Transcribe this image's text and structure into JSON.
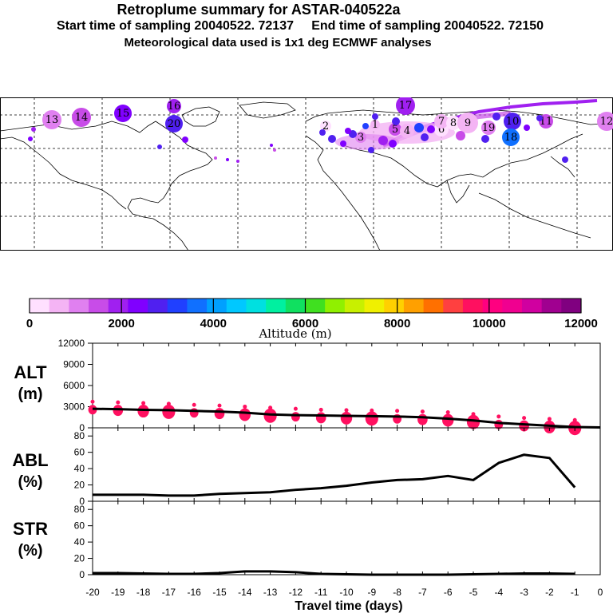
{
  "header": {
    "title": "Retroplume summary for ASTAR-040522a",
    "subtitle": "Start time of sampling 20040522. 72137     End time of sampling 20040522. 72150",
    "met": "Meteorological data used is 1x1 deg ECMWF analyses"
  },
  "map": {
    "cluster_labels": [
      "13",
      "14",
      "15",
      "16",
      "20",
      "2",
      "1",
      "3",
      "5",
      "4",
      "6",
      "7",
      "8",
      "9",
      "10",
      "11",
      "12",
      "17",
      "18",
      "19"
    ]
  },
  "colorbar": {
    "label": "Altitude (m)",
    "ticks": [
      "0",
      "2000",
      "4000",
      "6000",
      "8000",
      "10000",
      "12000"
    ],
    "colors": [
      "#ffe0ff",
      "#f4b4f4",
      "#e080f0",
      "#c84ce8",
      "#a020f0",
      "#8000ff",
      "#5020f0",
      "#2040ff",
      "#1070ff",
      "#00a0ff",
      "#00c8ff",
      "#00e0e0",
      "#00f0a0",
      "#10e060",
      "#40e020",
      "#90f000",
      "#c8f000",
      "#f0f000",
      "#ffd000",
      "#ffa000",
      "#ff7000",
      "#ff4040",
      "#ff1060",
      "#ff0080",
      "#f00090",
      "#d000a0",
      "#a00090",
      "#800080"
    ]
  },
  "chart_data": [
    {
      "type": "line",
      "panel": "ALT",
      "ylabel": "ALT\n(m)",
      "ylabel_line1": "ALT",
      "ylabel_line2": "(m)",
      "ylim": [
        0,
        12000
      ],
      "yticks": [
        0,
        3000,
        6000,
        9000,
        12000
      ],
      "yticklabels": [
        "0",
        "3000",
        "6000",
        "9000",
        "12000"
      ],
      "x": [
        -20,
        -19,
        -18,
        -17,
        -16,
        -15,
        -14,
        -13,
        -12,
        -11,
        -10,
        -9,
        -8,
        -7,
        -6,
        -5,
        -4,
        -3,
        -2,
        -1,
        -0.5,
        0
      ],
      "values": [
        2700,
        2650,
        2550,
        2500,
        2400,
        2300,
        2150,
        1900,
        1800,
        1750,
        1700,
        1650,
        1600,
        1500,
        1300,
        1050,
        700,
        500,
        300,
        120,
        80,
        50
      ],
      "marker_color": "#ff1060",
      "marker_x": [
        -20,
        -19,
        -18,
        -17,
        -16,
        -15,
        -14,
        -13,
        -12,
        -11,
        -10,
        -9,
        -8,
        -7,
        -6,
        -5,
        -4,
        -3,
        -2,
        -1
      ],
      "marker_values": [
        2800,
        2700,
        2600,
        2500,
        2350,
        2250,
        2100,
        1950,
        1800,
        1650,
        1600,
        1550,
        1500,
        1400,
        1300,
        1050,
        700,
        500,
        350,
        200
      ]
    },
    {
      "type": "line",
      "panel": "ABL",
      "ylabel_line1": "ABL",
      "ylabel_line2": "(%)",
      "ylim": [
        0,
        90
      ],
      "yticks": [
        0,
        20,
        40,
        60,
        80
      ],
      "yticklabels": [
        "0",
        "20",
        "40",
        "60",
        "80"
      ],
      "x": [
        -20,
        -19,
        -18,
        -17,
        -16,
        -15,
        -14,
        -13,
        -12,
        -11,
        -10,
        -9,
        -8,
        -7,
        -6,
        -5,
        -4,
        -3,
        -2,
        -1
      ],
      "values": [
        8,
        8,
        8,
        7,
        7,
        9,
        10,
        11,
        14,
        16,
        19,
        23,
        26,
        27,
        31,
        26,
        47,
        57,
        53,
        17
      ]
    },
    {
      "type": "line",
      "panel": "STR",
      "ylabel_line1": "STR",
      "ylabel_line2": "(%)",
      "ylim": [
        0,
        90
      ],
      "yticks": [
        0,
        20,
        40,
        60,
        80
      ],
      "yticklabels": [
        "0",
        "20",
        "40",
        "60",
        "80"
      ],
      "x": [
        -20,
        -19,
        -18,
        -17,
        -16,
        -15,
        -14,
        -13,
        -12,
        -11,
        -10,
        -9,
        -8,
        -7,
        -6,
        -5,
        -4,
        -3,
        -2,
        -1
      ],
      "values": [
        2,
        2,
        1.5,
        1,
        1,
        2,
        4,
        4,
        3,
        1,
        0.5,
        0,
        0,
        0,
        0,
        0.5,
        1,
        1.5,
        1.5,
        1
      ],
      "xlabel": "Travel time (days)",
      "xlim": [
        -20,
        0
      ],
      "xticklabels": [
        "-20",
        "-19",
        "-18",
        "-17",
        "-16",
        "-15",
        "-14",
        "-13",
        "-12",
        "-11",
        "-10",
        "-9",
        "-8",
        "-7",
        "-6",
        "-5",
        "-4",
        "-3",
        "-2",
        "-1",
        "0"
      ]
    }
  ]
}
